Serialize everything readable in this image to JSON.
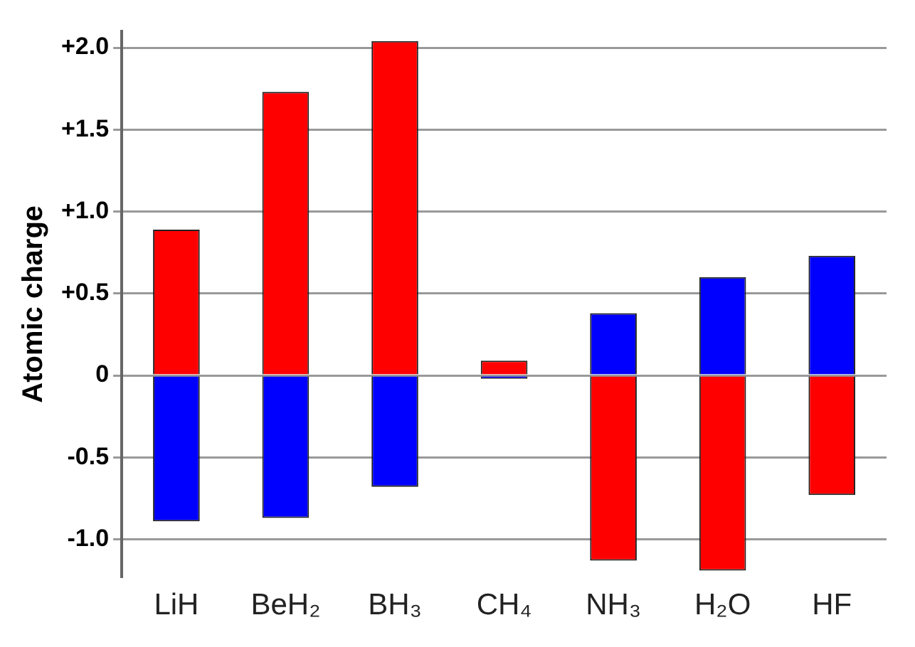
{
  "chart_data": {
    "type": "bar",
    "ylabel": "Atomic charge",
    "categories": [
      "LiH",
      "BeH₂",
      "BH₃",
      "CH₄",
      "NH₃",
      "H₂O",
      "HF"
    ],
    "series": [
      {
        "color": "#ff0000",
        "values": [
          0.89,
          1.73,
          2.04,
          0.09,
          -1.13,
          -1.19,
          -0.73
        ]
      },
      {
        "color": "#0000ff",
        "values": [
          -0.89,
          -0.87,
          -0.68,
          -0.02,
          0.38,
          0.6,
          0.73
        ]
      }
    ],
    "stacked": true,
    "ylim": [
      -1.23,
      2.1
    ],
    "yticks": [
      {
        "value": -1,
        "label": "-1.0"
      },
      -0.5,
      0,
      {
        "value": 0.5,
        "label": "+0.5"
      },
      {
        "value": 1,
        "label": "+1.0"
      },
      {
        "value": 1.5,
        "label": "+1.5"
      },
      {
        "value": 2,
        "label": "+2.0"
      }
    ],
    "grid": "y",
    "legend": false
  }
}
